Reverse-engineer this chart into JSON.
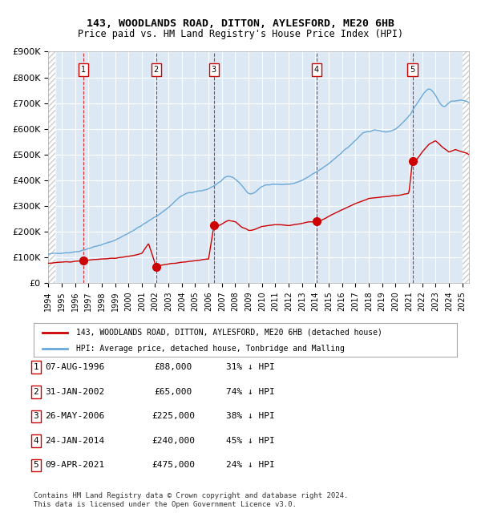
{
  "title": "143, WOODLANDS ROAD, DITTON, AYLESFORD, ME20 6HB",
  "subtitle": "Price paid vs. HM Land Registry's House Price Index (HPI)",
  "ylabel": "",
  "background_color": "#ffffff",
  "plot_bg_color": "#dce9f5",
  "hpi_color": "#6aa8d8",
  "price_color": "#cc0000",
  "sale_marker_color": "#cc0000",
  "vline_color": "#cc0000",
  "ylim": [
    0,
    900000
  ],
  "xlim_start": 1994.0,
  "xlim_end": 2025.5,
  "sales": [
    {
      "num": 1,
      "date": "07-AUG-1996",
      "year": 1996.6,
      "price": 88000,
      "pct": "31%"
    },
    {
      "num": 2,
      "date": "31-JAN-2002",
      "year": 2002.08,
      "price": 65000,
      "pct": "74%"
    },
    {
      "num": 3,
      "date": "26-MAY-2006",
      "year": 2006.4,
      "price": 225000,
      "pct": "38%"
    },
    {
      "num": 4,
      "date": "24-JAN-2014",
      "year": 2014.07,
      "price": 240000,
      "pct": "45%"
    },
    {
      "num": 5,
      "date": "09-APR-2021",
      "year": 2021.27,
      "price": 475000,
      "pct": "24%"
    }
  ],
  "legend_label_red": "143, WOODLANDS ROAD, DITTON, AYLESFORD, ME20 6HB (detached house)",
  "legend_label_blue": "HPI: Average price, detached house, Tonbridge and Malling",
  "footnote": "Contains HM Land Registry data © Crown copyright and database right 2024.\nThis data is licensed under the Open Government Licence v3.0.",
  "yticks": [
    0,
    100000,
    200000,
    300000,
    400000,
    500000,
    600000,
    700000,
    800000,
    900000
  ],
  "ytick_labels": [
    "£0",
    "£100K",
    "£200K",
    "£300K",
    "£400K",
    "£500K",
    "£600K",
    "£700K",
    "£800K",
    "£900K"
  ],
  "xticks": [
    1994,
    1995,
    1996,
    1997,
    1998,
    1999,
    2000,
    2001,
    2002,
    2003,
    2004,
    2005,
    2006,
    2007,
    2008,
    2009,
    2010,
    2011,
    2012,
    2013,
    2014,
    2015,
    2016,
    2017,
    2018,
    2019,
    2020,
    2021,
    2022,
    2023,
    2024,
    2025
  ]
}
